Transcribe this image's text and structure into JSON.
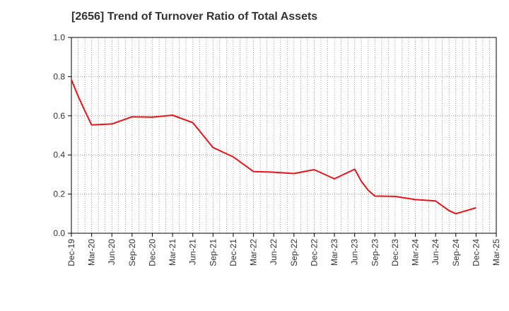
{
  "chart_data": {
    "type": "line",
    "title": "[2656]  Trend of Turnover Ratio of Total Assets",
    "xlabel": "",
    "ylabel": "",
    "ylim": [
      0,
      1.0
    ],
    "y_ticks": [
      "0.0",
      "0.2",
      "0.4",
      "0.6",
      "0.8",
      "1.0"
    ],
    "x_tick_labels": [
      "Dec-19",
      "Mar-20",
      "Jun-20",
      "Sep-20",
      "Dec-20",
      "Mar-21",
      "Jun-21",
      "Sep-21",
      "Dec-21",
      "Mar-22",
      "Jun-22",
      "Sep-22",
      "Dec-22",
      "Mar-23",
      "Jun-23",
      "Sep-23",
      "Dec-23",
      "Mar-24",
      "Jun-24",
      "Sep-24",
      "Dec-24",
      "Mar-25"
    ],
    "grid": true,
    "x": [
      "Dec-19",
      "Jan-20",
      "Feb-20",
      "Mar-20",
      "Jun-20",
      "Sep-20",
      "Dec-20",
      "Mar-21",
      "Jun-21",
      "Sep-21",
      "Dec-21",
      "Mar-22",
      "Jun-22",
      "Sep-22",
      "Dec-22",
      "Mar-23",
      "Jun-23",
      "Jul-23",
      "Aug-23",
      "Sep-23",
      "Dec-23",
      "Mar-24",
      "Jun-24",
      "Jul-24",
      "Aug-24",
      "Sep-24",
      "Dec-24"
    ],
    "series": [
      {
        "name": "",
        "color": "#e8141a",
        "values": [
          0.785,
          0.7,
          0.625,
          0.553,
          0.558,
          0.595,
          0.593,
          0.603,
          0.565,
          0.438,
          0.39,
          0.315,
          0.312,
          0.305,
          0.325,
          0.278,
          0.327,
          0.265,
          0.22,
          0.19,
          0.188,
          0.172,
          0.165,
          0.14,
          0.115,
          0.1,
          0.13
        ]
      }
    ]
  },
  "colors": {
    "line": "#e8141a",
    "axis": "#000000",
    "grid": "#888888",
    "text": "#333333"
  }
}
